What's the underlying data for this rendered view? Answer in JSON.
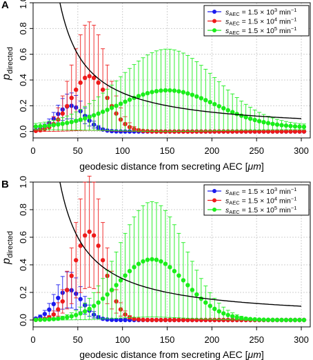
{
  "chart_data": [
    {
      "panel_label": "A",
      "type": "scatter",
      "xlabel_prefix": "geodesic distance from secreting AEC [",
      "xlabel_unit": "μm",
      "xlabel_suffix": "]",
      "ylabel_main": "p",
      "ylabel_sub": "directed",
      "xlim": [
        0,
        310
      ],
      "ylim": [
        -0.05,
        1.0
      ],
      "xticks": [
        "0",
        "50",
        "100",
        "150",
        "200",
        "250",
        "300"
      ],
      "yticks": [
        "0.0",
        "0.2",
        "0.4",
        "0.6",
        "0.8",
        "1.0"
      ],
      "grid": true,
      "legend_position": "top-right",
      "series": [
        {
          "name": "s_AEC = 1.5 × 10^3 min^-1",
          "color": "#1a1aee",
          "peak_x": 42,
          "peak_y": 0.2,
          "width": 16,
          "floor": 0.0,
          "err_ratio": 0.5
        },
        {
          "name": "s_AEC = 1.5 × 10^4 min^-1",
          "color": "#ee1a1a",
          "peak_x": 63,
          "peak_y": 0.43,
          "width": 20,
          "floor": 0.0,
          "err_ratio": 0.98
        },
        {
          "name": "s_AEC = 1.5 × 10^5 min^-1",
          "color": "#1aee1a",
          "peak_x": 150,
          "peak_y": 0.32,
          "width": 55,
          "floor": 0.03,
          "err_ratio": 1.05
        }
      ],
      "curve": {
        "color": "#000000",
        "x_start": 30,
        "x_end": 300,
        "c": 30
      }
    },
    {
      "panel_label": "B",
      "type": "scatter",
      "xlabel_prefix": "geodesic distance from secreting AEC [",
      "xlabel_unit": "μm",
      "xlabel_suffix": "]",
      "ylabel_main": "p",
      "ylabel_sub": "directed",
      "xlim": [
        0,
        310
      ],
      "ylim": [
        -0.05,
        1.0
      ],
      "xticks": [
        "0",
        "50",
        "100",
        "150",
        "200",
        "250",
        "300"
      ],
      "yticks": [
        "0.0",
        "0.2",
        "0.4",
        "0.6",
        "0.8",
        "1.0"
      ],
      "grid": true,
      "legend_position": "top-right",
      "series": [
        {
          "name": "s_AEC = 1.5 × 10^3 min^-1",
          "color": "#1a1aee",
          "peak_x": 40,
          "peak_y": 0.22,
          "width": 15,
          "floor": 0.0,
          "err_ratio": 0.6
        },
        {
          "name": "s_AEC = 1.5 × 10^4 min^-1",
          "color": "#ee1a1a",
          "peak_x": 63,
          "peak_y": 0.64,
          "width": 17,
          "floor": 0.0,
          "err_ratio": 0.63
        },
        {
          "name": "s_AEC = 1.5 × 10^5 min^-1",
          "color": "#1aee1a",
          "peak_x": 133,
          "peak_y": 0.44,
          "width": 38,
          "floor": 0.0,
          "err_ratio": 0.95
        }
      ],
      "curve": {
        "color": "#000000",
        "x_start": 30,
        "x_end": 300,
        "c": 30
      }
    }
  ],
  "legend_label": {
    "s": "s",
    "sub": "AEC",
    "mid": " = 1.5 × 10",
    "exps": [
      "3",
      "4",
      "5"
    ],
    "unit": " min",
    "unit_exp": "−1"
  }
}
